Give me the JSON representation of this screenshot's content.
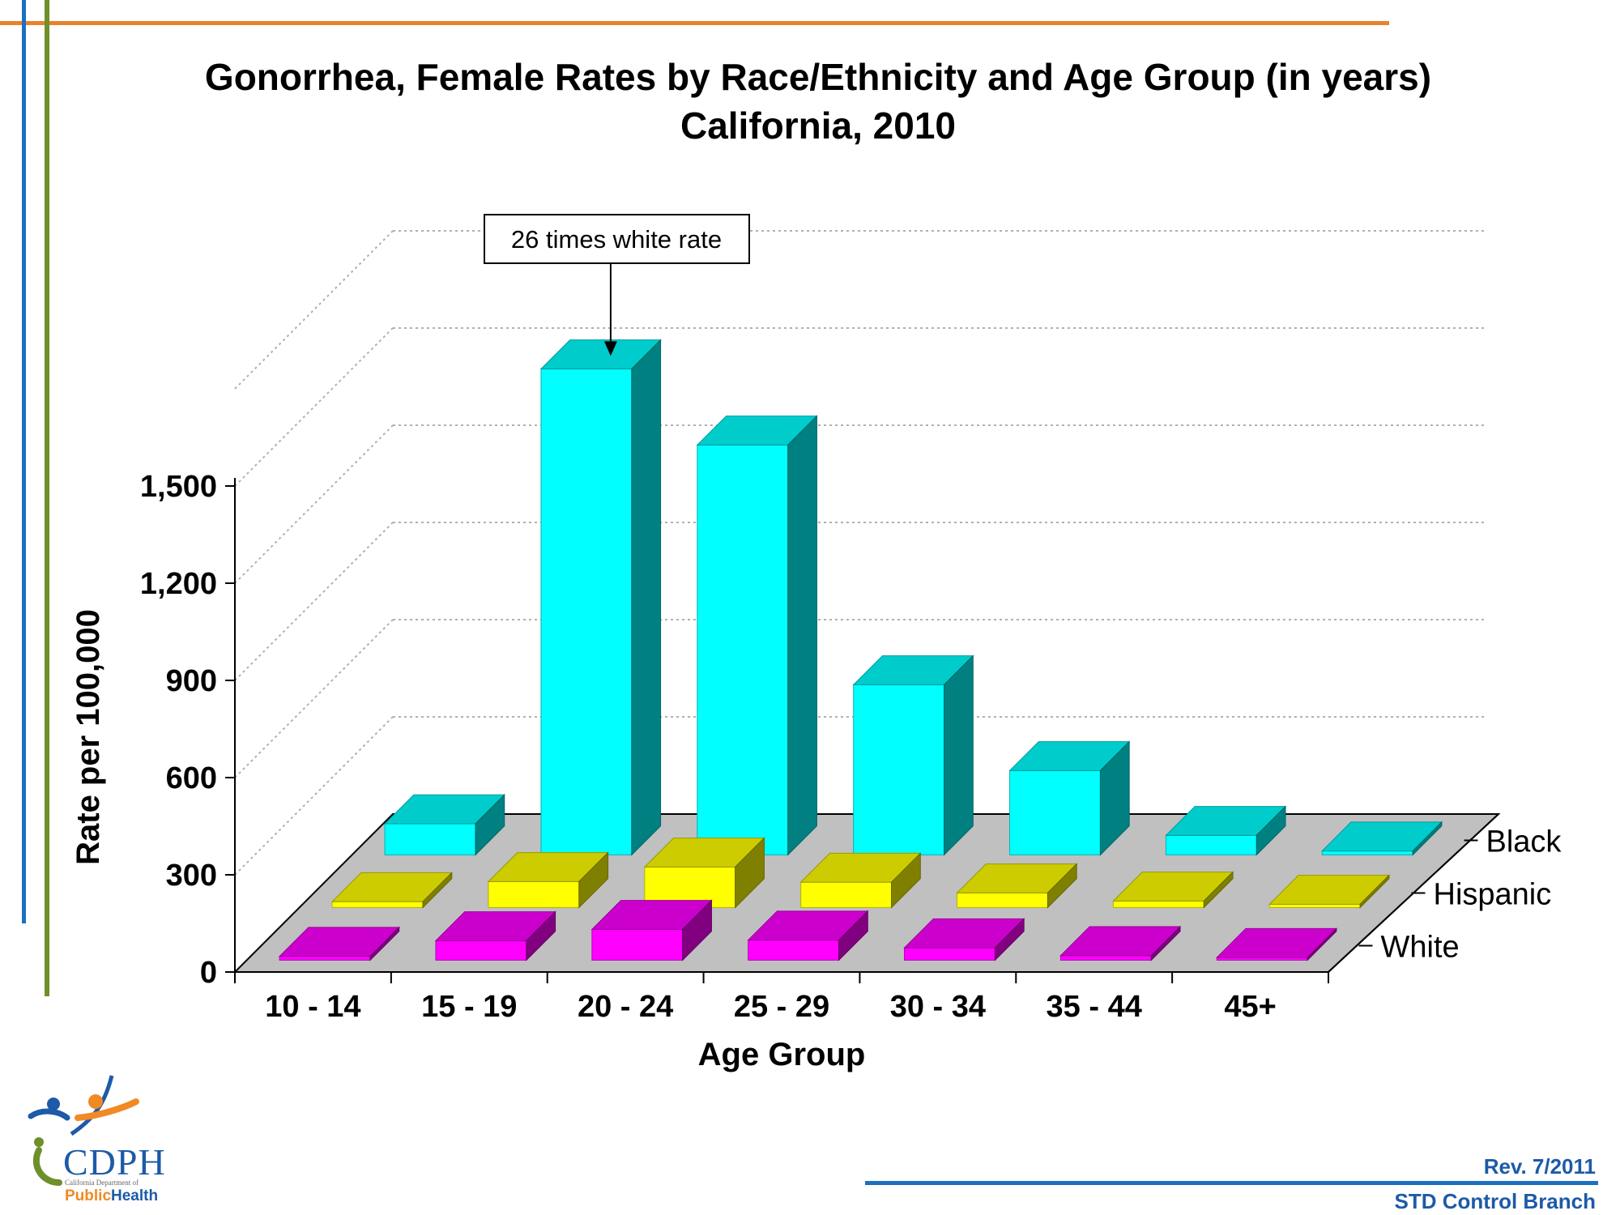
{
  "chart_data": {
    "type": "bar",
    "title": "Gonorrhea, Female Rates by Race/Ethnicity and Age Group (in years)",
    "subtitle": "California, 2010",
    "xlabel": "Age Group",
    "ylabel": "Rate per 100,000",
    "categories": [
      "10 - 14",
      "15 - 19",
      "20 - 24",
      "25 - 29",
      "30 - 34",
      "35 - 44",
      "45+"
    ],
    "yticks": [
      0,
      300,
      600,
      900,
      1200,
      1500
    ],
    "ytick_labels": [
      "0",
      "300",
      "600",
      "900",
      "1,200",
      "1,500"
    ],
    "ylim": [
      0,
      1800
    ],
    "series": [
      {
        "name": "Black",
        "color": "#00ffff",
        "values": [
          96,
          1500,
          1265,
          525,
          260,
          60,
          12
        ]
      },
      {
        "name": "Hispanic",
        "color": "#ffff00",
        "values": [
          18,
          80,
          125,
          78,
          45,
          20,
          10
        ]
      },
      {
        "name": "White",
        "color": "#ff00ff",
        "values": [
          12,
          60,
          95,
          62,
          38,
          14,
          8
        ]
      }
    ],
    "annotation": {
      "text": "26 times white rate",
      "series": "Black",
      "category": "15 - 19"
    },
    "grid": true,
    "legend": "right (depth axis)"
  },
  "footer": {
    "revision": "Rev. 7/2011",
    "branch": "STD Control Branch"
  },
  "logo": {
    "name": "CDPH",
    "subtitle": "California Department of",
    "public": "Public",
    "health": "Health"
  },
  "colors": {
    "frame_orange": "#e8822a",
    "frame_blue": "#1d6fbf",
    "frame_green": "#6f8f2a",
    "floor": "#c0c0c0"
  }
}
